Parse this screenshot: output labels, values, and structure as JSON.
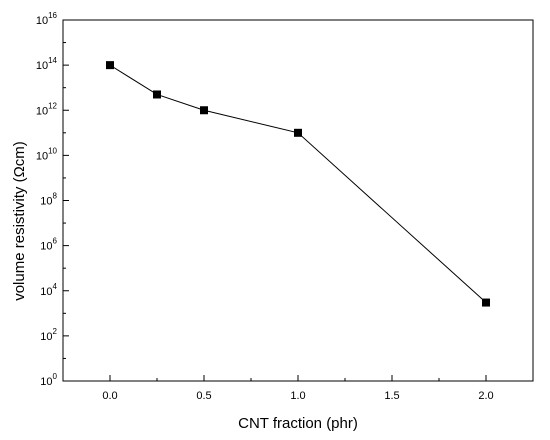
{
  "chart_data": {
    "type": "line",
    "xlabel": "CNT fraction (phr)",
    "ylabel": "volume resistivity (Ωcm)",
    "xlim": [
      -0.25,
      2.25
    ],
    "ylim_log10": [
      0,
      16
    ],
    "y_scale": "log",
    "grid": false,
    "x_ticks": [
      {
        "value": 0.0,
        "label": "0.0"
      },
      {
        "value": 0.5,
        "label": "0.5"
      },
      {
        "value": 1.0,
        "label": "1.0"
      },
      {
        "value": 1.5,
        "label": "1.5"
      },
      {
        "value": 2.0,
        "label": "2.0"
      }
    ],
    "y_ticks": [
      {
        "exp": 0,
        "base": "10",
        "power": "0"
      },
      {
        "exp": 2,
        "base": "10",
        "power": "2"
      },
      {
        "exp": 4,
        "base": "10",
        "power": "4"
      },
      {
        "exp": 6,
        "base": "10",
        "power": "6"
      },
      {
        "exp": 8,
        "base": "10",
        "power": "8"
      },
      {
        "exp": 10,
        "base": "10",
        "power": "10"
      },
      {
        "exp": 12,
        "base": "10",
        "power": "12"
      },
      {
        "exp": 14,
        "base": "10",
        "power": "14"
      },
      {
        "exp": 16,
        "base": "10",
        "power": "16"
      }
    ],
    "series": [
      {
        "x": [
          0.0,
          0.25,
          0.5,
          1.0,
          2.0
        ],
        "y": [
          100000000000000.0,
          5000000000000.0,
          1000000000000.0,
          100000000000.0,
          3000.0
        ]
      }
    ]
  }
}
